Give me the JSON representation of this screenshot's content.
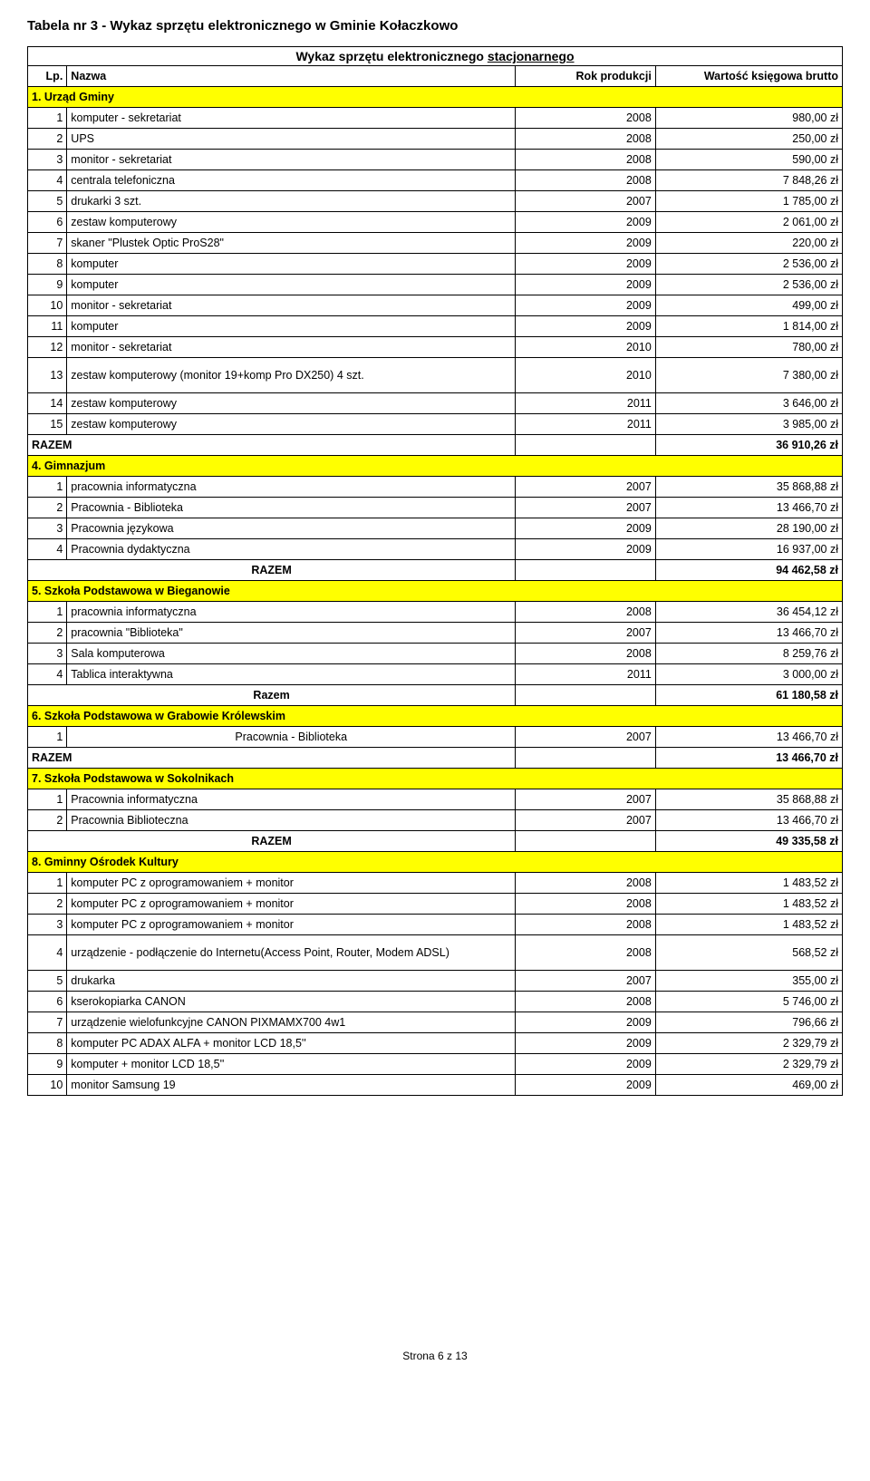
{
  "title": "Tabela nr 3 - Wykaz sprzętu elektronicznego w Gminie Kołaczkowo",
  "subtitle_prefix": "Wykaz sprzętu elektronicznego ",
  "subtitle_underlined": "stacjonarnego",
  "headers": {
    "lp": "Lp.",
    "name": "Nazwa",
    "year": "Rok produkcji",
    "value": "Wartość księgowa brutto"
  },
  "sections": [
    {
      "title": "1. Urząd Gminy",
      "rows": [
        {
          "lp": "1",
          "name": "komputer - sekretariat",
          "year": "2008",
          "val": "980,00 zł"
        },
        {
          "lp": "2",
          "name": "UPS",
          "year": "2008",
          "val": "250,00 zł"
        },
        {
          "lp": "3",
          "name": "monitor - sekretariat",
          "year": "2008",
          "val": "590,00 zł"
        },
        {
          "lp": "4",
          "name": "centrala telefoniczna",
          "year": "2008",
          "val": "7 848,26 zł"
        },
        {
          "lp": "5",
          "name": "drukarki 3 szt.",
          "year": "2007",
          "val": "1 785,00 zł"
        },
        {
          "lp": "6",
          "name": "zestaw komputerowy",
          "year": "2009",
          "val": "2 061,00 zł"
        },
        {
          "lp": "7",
          "name": "skaner \"Plustek Optic ProS28\"",
          "year": "2009",
          "val": "220,00 zł"
        },
        {
          "lp": "8",
          "name": "komputer",
          "year": "2009",
          "val": "2 536,00 zł"
        },
        {
          "lp": "9",
          "name": "komputer",
          "year": "2009",
          "val": "2 536,00 zł"
        },
        {
          "lp": "10",
          "name": "monitor - sekretariat",
          "year": "2009",
          "val": "499,00 zł"
        },
        {
          "lp": "11",
          "name": "komputer",
          "year": "2009",
          "val": "1 814,00 zł"
        },
        {
          "lp": "12",
          "name": "monitor - sekretariat",
          "year": "2010",
          "val": "780,00 zł"
        },
        {
          "lp": "13",
          "name": "zestaw komputerowy (monitor 19+komp Pro DX250) 4 szt.",
          "year": "2010",
          "val": "7 380,00 zł",
          "tall": true
        },
        {
          "lp": "14",
          "name": "zestaw komputerowy",
          "year": "2011",
          "val": "3 646,00 zł"
        },
        {
          "lp": "15",
          "name": "zestaw komputerowy",
          "year": "2011",
          "val": "3 985,00 zł"
        }
      ],
      "sum_label": "RAZEM",
      "sum_val": "36 910,26 zł"
    },
    {
      "title": "4. Gimnazjum",
      "rows": [
        {
          "lp": "1",
          "name": "pracownia informatyczna",
          "year": "2007",
          "val": "35 868,88 zł"
        },
        {
          "lp": "2",
          "name": "Pracownia - Biblioteka",
          "year": "2007",
          "val": "13 466,70 zł"
        },
        {
          "lp": "3",
          "name": "Pracownia językowa",
          "year": "2009",
          "val": "28 190,00 zł"
        },
        {
          "lp": "4",
          "name": "Pracownia dydaktyczna",
          "year": "2009",
          "val": "16 937,00 zł"
        }
      ],
      "sum_label": "RAZEM",
      "sum_val": "94 462,58 zł",
      "sum_center": true
    },
    {
      "title": "5. Szkoła Podstawowa w Bieganowie",
      "rows": [
        {
          "lp": "1",
          "name": "pracownia informatyczna",
          "year": "2008",
          "val": "36 454,12 zł"
        },
        {
          "lp": "2",
          "name": "pracownia \"Biblioteka\"",
          "year": "2007",
          "val": "13 466,70 zł"
        },
        {
          "lp": "3",
          "name": "Sala komputerowa",
          "year": "2008",
          "val": "8 259,76 zł"
        },
        {
          "lp": "4",
          "name": "Tablica  interaktywna",
          "year": "2011",
          "val": "3 000,00 zł"
        }
      ],
      "sum_label": "Razem",
      "sum_val": "61 180,58 zł",
      "sum_center": true
    },
    {
      "title": "6. Szkoła Podstawowa w Grabowie Królewskim",
      "rows": [
        {
          "lp": "1",
          "name": "Pracownia - Biblioteka",
          "year": "2007",
          "val": "13 466,70 zł",
          "name_center": true
        }
      ],
      "sum_label": "RAZEM",
      "sum_val": "13 466,70 zł"
    },
    {
      "title": "7. Szkoła Podstawowa w Sokolnikach",
      "rows": [
        {
          "lp": "1",
          "name": "Pracownia informatyczna",
          "year": "2007",
          "val": "35 868,88 zł"
        },
        {
          "lp": "2",
          "name": "Pracownia Biblioteczna",
          "year": "2007",
          "val": "13 466,70 zł"
        }
      ],
      "sum_label": "RAZEM",
      "sum_val": "49 335,58 zł",
      "sum_center": true
    },
    {
      "title": "8. Gminny Ośrodek Kultury",
      "rows": [
        {
          "lp": "1",
          "name": "komputer PC z oprogramowaniem + monitor",
          "year": "2008",
          "val": "1 483,52 zł"
        },
        {
          "lp": "2",
          "name": "komputer PC z oprogramowaniem + monitor",
          "year": "2008",
          "val": "1 483,52 zł"
        },
        {
          "lp": "3",
          "name": "komputer PC z oprogramowaniem + monitor",
          "year": "2008",
          "val": "1 483,52 zł"
        },
        {
          "lp": "4",
          "name": "urządzenie - podłączenie do Internetu(Access Point, Router, Modem ADSL)",
          "year": "2008",
          "val": "568,52 zł",
          "tall": true
        },
        {
          "lp": "5",
          "name": "drukarka",
          "year": "2007",
          "val": "355,00 zł"
        },
        {
          "lp": "6",
          "name": "kserokopiarka CANON",
          "year": "2008",
          "val": "5 746,00 zł"
        },
        {
          "lp": "7",
          "name": "urządzenie wielofunkcyjne CANON PIXMAMX700 4w1",
          "year": "2009",
          "val": "796,66 zł"
        },
        {
          "lp": "8",
          "name": "komputer PC ADAX ALFA + monitor LCD 18,5''",
          "year": "2009",
          "val": "2 329,79 zł"
        },
        {
          "lp": "9",
          "name": "komputer + monitor LCD 18,5''",
          "year": "2009",
          "val": "2 329,79 zł"
        },
        {
          "lp": "10",
          "name": "monitor Samsung 19",
          "year": "2009",
          "val": "469,00 zł"
        }
      ]
    }
  ],
  "footer": "Strona 6 z 13",
  "colors": {
    "highlight": "#ffff00",
    "border": "#000000",
    "bg": "#ffffff",
    "text": "#000000"
  }
}
